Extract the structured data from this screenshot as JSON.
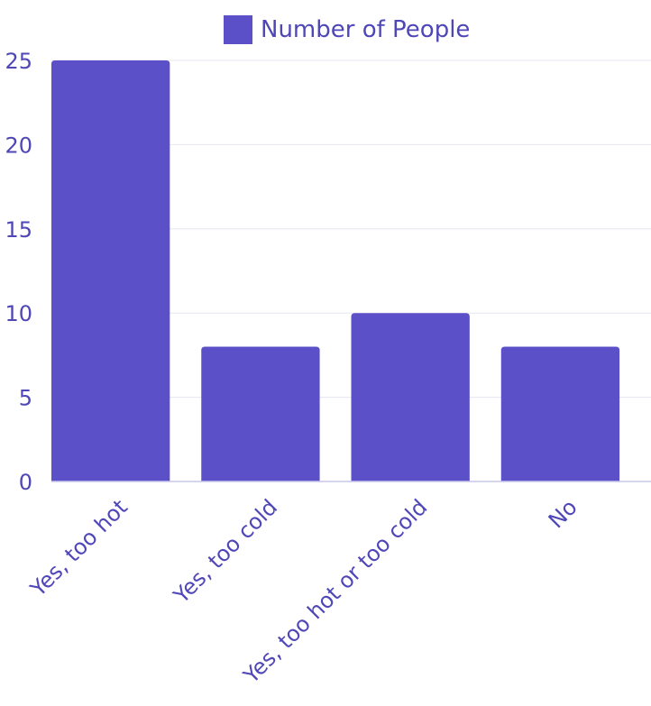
{
  "chart_data": {
    "type": "bar",
    "categories": [
      "Yes, too hot",
      "Yes, too cold",
      "Yes, too hot or too cold",
      "No"
    ],
    "series": [
      {
        "name": "Number of People",
        "values": [
          25,
          8,
          10,
          8
        ]
      }
    ],
    "ylim": [
      0,
      25
    ],
    "yticks": [
      0,
      5,
      10,
      15,
      20,
      25
    ],
    "grid": true,
    "legend": "top-center",
    "colors": {
      "bar": "#5b50c8",
      "text": "#4f46b8",
      "grid": "#e6e6f2",
      "axis": "#c9c7ea"
    }
  }
}
